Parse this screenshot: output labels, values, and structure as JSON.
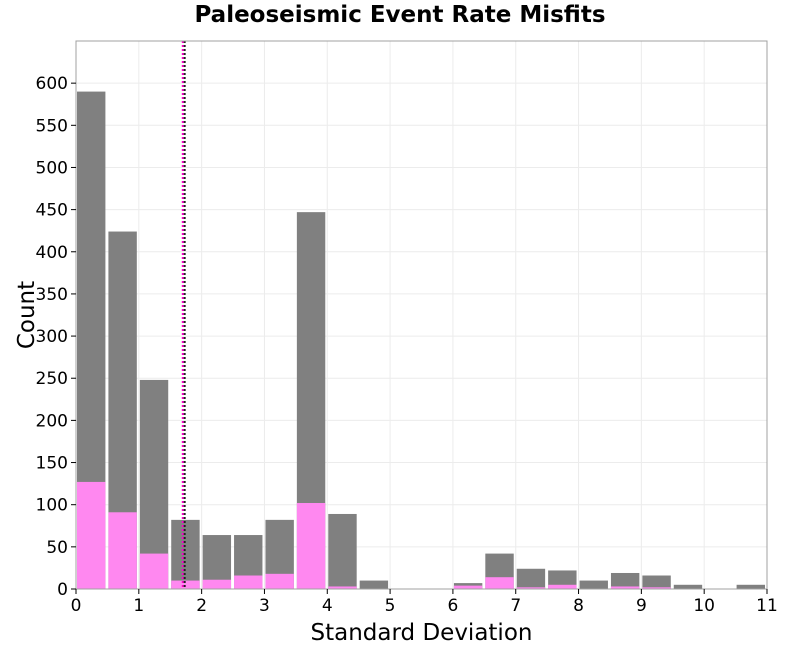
{
  "chart_data": {
    "type": "bar",
    "title": "Paleoseismic Event Rate Misfits",
    "xlabel": "Standard Deviation",
    "ylabel": "Count",
    "xlim": [
      0,
      11
    ],
    "ylim": [
      0,
      650
    ],
    "xticks": [
      0,
      1,
      2,
      3,
      4,
      5,
      6,
      7,
      8,
      9,
      10,
      11
    ],
    "yticks": [
      0,
      50,
      100,
      150,
      200,
      250,
      300,
      350,
      400,
      450,
      500,
      550,
      600
    ],
    "bin_width": 0.5,
    "bins": [
      0,
      0.5,
      1,
      1.5,
      2,
      2.5,
      3,
      3.5,
      4,
      4.5,
      5,
      5.5,
      6,
      6.5,
      7,
      7.5,
      8,
      8.5,
      9,
      9.5,
      10,
      10.5
    ],
    "series": [
      {
        "color": "#808080",
        "values": [
          590,
          424,
          248,
          82,
          64,
          64,
          82,
          447,
          89,
          10,
          0,
          0,
          7,
          42,
          24,
          22,
          10,
          19,
          16,
          5,
          0,
          5
        ]
      },
      {
        "color": "#ff88f0",
        "values": [
          127,
          91,
          42,
          10,
          11,
          16,
          18,
          102,
          3,
          0,
          0,
          0,
          4,
          14,
          2,
          5,
          0,
          3,
          2,
          0,
          0,
          0
        ]
      }
    ],
    "vlines": [
      {
        "x": 1.7,
        "color": "#ff00cc",
        "style": "dotted"
      },
      {
        "x": 1.73,
        "color": "#222222",
        "style": "dotted"
      }
    ],
    "grid": true
  }
}
